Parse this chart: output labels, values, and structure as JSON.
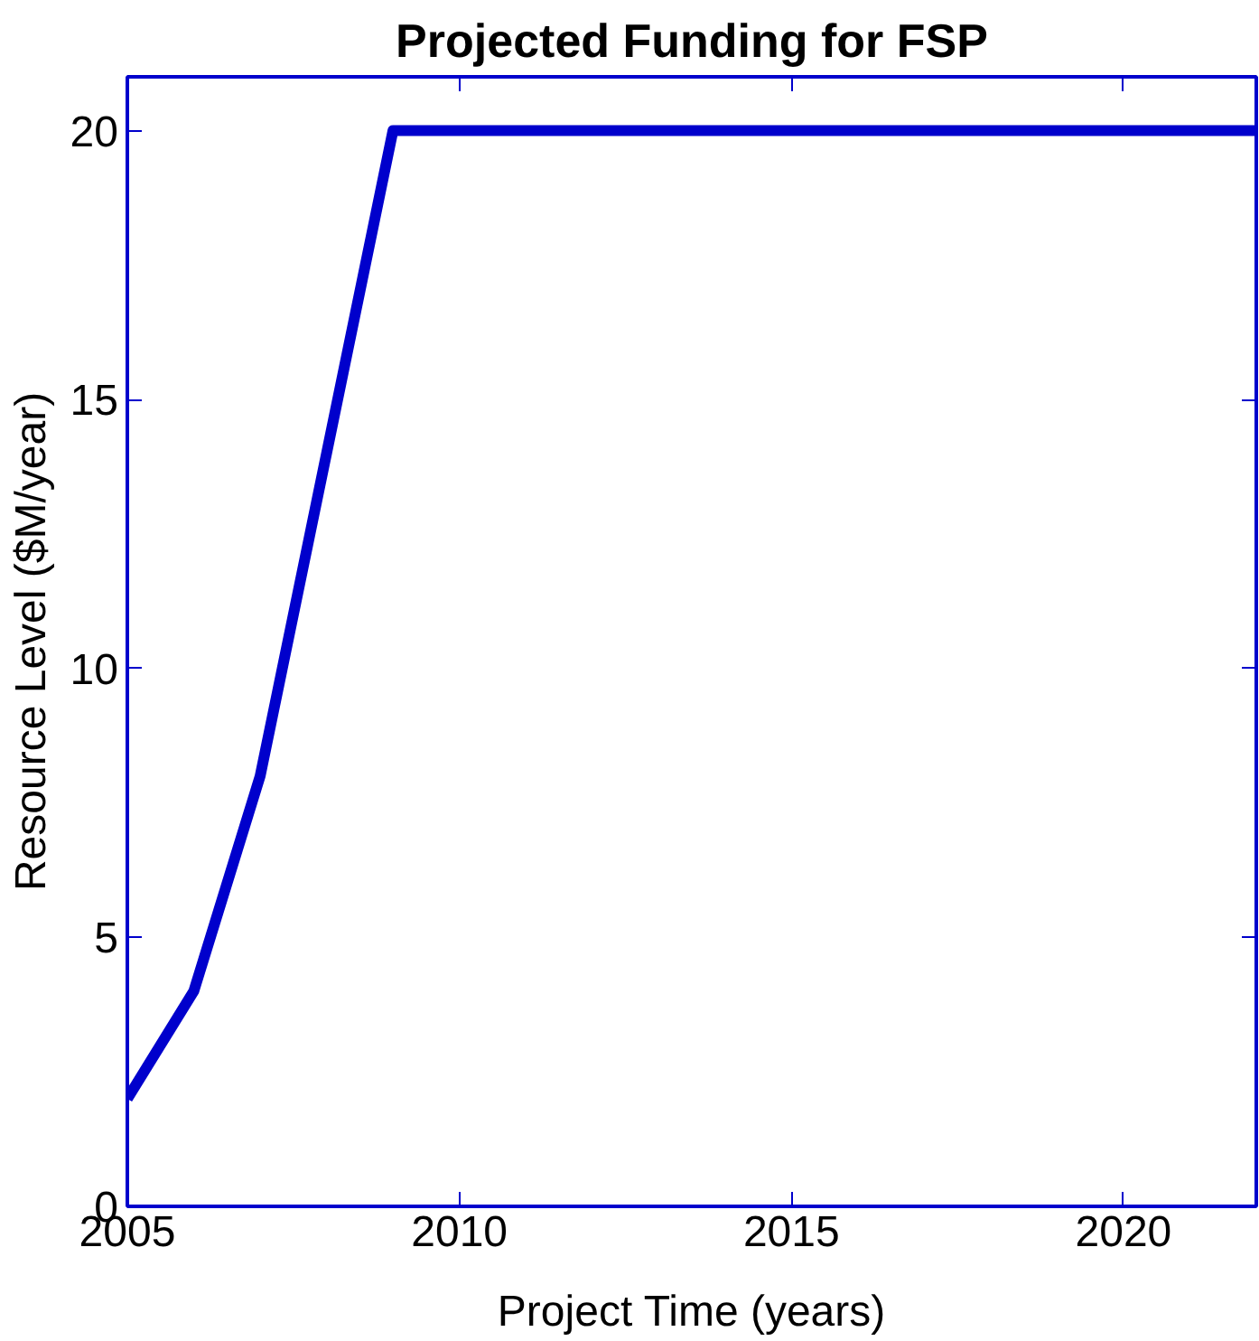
{
  "chart_data": {
    "type": "line",
    "title": "Projected Funding for FSP",
    "xlabel": "Project Time (years)",
    "ylabel": "Resource Level ($M/year)",
    "x": [
      2005,
      2006,
      2007,
      2008,
      2009,
      2022
    ],
    "series": [
      {
        "color": "#0000cc",
        "values": [
          2,
          4,
          8,
          14,
          20,
          20
        ]
      }
    ],
    "xlim": [
      2005,
      2022
    ],
    "ylim": [
      0,
      21
    ],
    "xticks": [
      2005,
      2010,
      2015,
      2020
    ],
    "yticks": [
      0,
      5,
      10,
      15,
      20
    ],
    "marker": "none",
    "line_style": "solid"
  }
}
